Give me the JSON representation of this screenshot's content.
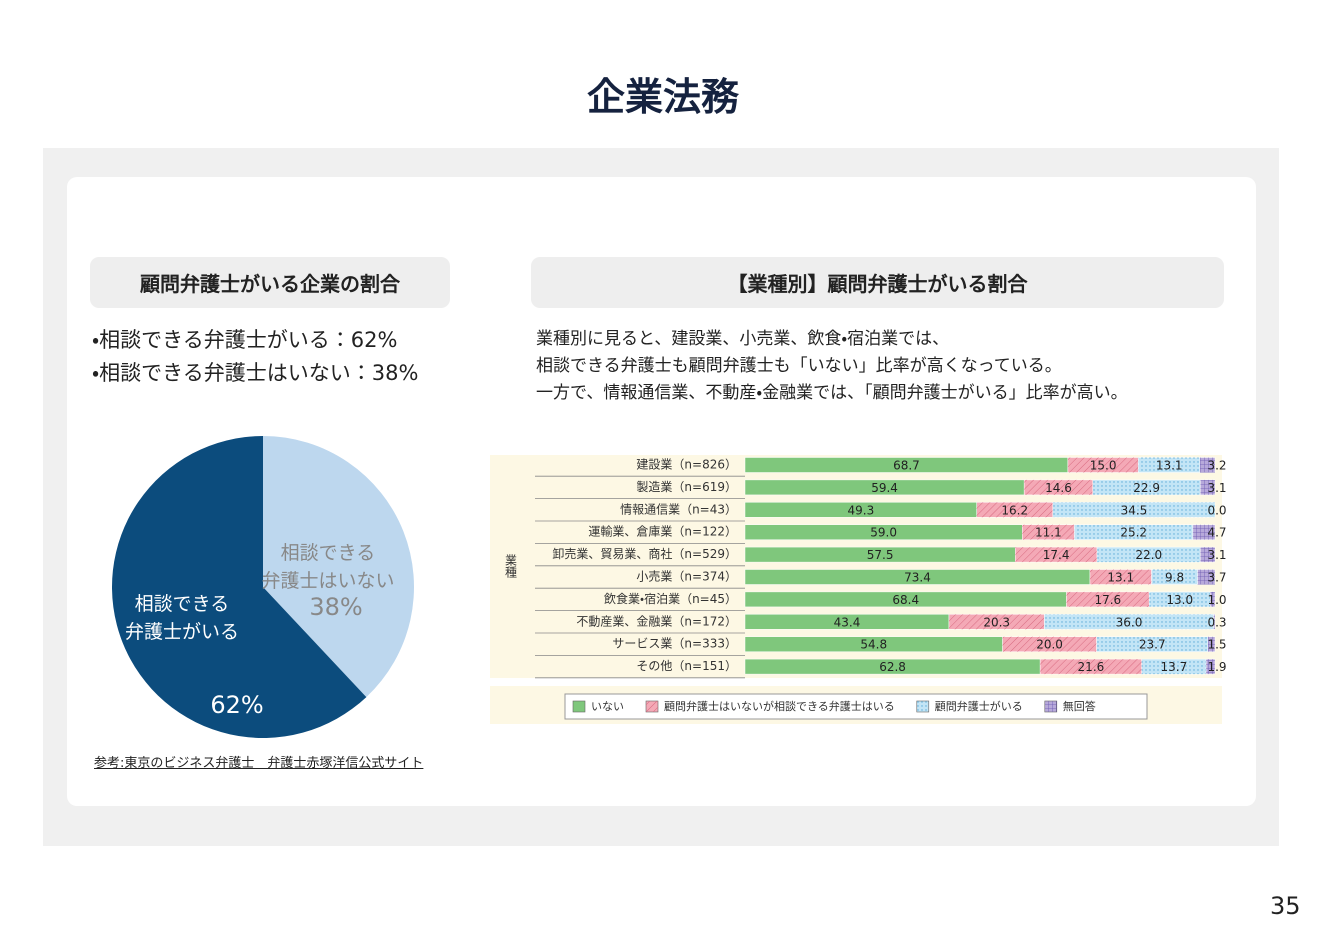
{
  "page": {
    "title": "企業法務",
    "page_number": "35"
  },
  "left": {
    "heading": "顧問弁護士がいる企業の割合",
    "bullets": [
      "・相談できる弁護士がいる：62%",
      "・相談できる弁護士はいない：38%"
    ],
    "source": "参考:東京のビジネス弁護士　弁護士赤塚洋信公式サイト"
  },
  "right": {
    "heading": "【業種別】顧問弁護士がいる割合",
    "description": [
      "業種別に見ると、建設業、小売業、飲食・宿泊業では、",
      "相談できる弁護士も顧問弁護士も「いない」比率が高くなっている。",
      "一方で、情報通信業、不動産・金融業では、「顧問弁護士がいる」比率が高い。"
    ]
  },
  "chart_data": [
    {
      "type": "pie",
      "categories": [
        "相談できる\n弁護士がいる",
        "相談できる\n弁護士はいない"
      ],
      "values": [
        62,
        38
      ],
      "value_labels": [
        "62%",
        "38%"
      ],
      "colors": [
        "#0c4c7d",
        "#bdd7ee"
      ],
      "label_colors": [
        "#ffffff",
        "#888888"
      ]
    },
    {
      "type": "stacked-bar-horizontal",
      "y_label": "業種",
      "categories": [
        "建設業（n=826）",
        "製造業（n=619）",
        "情報通信業（n=43）",
        "運輸業、倉庫業（n=122）",
        "卸売業、貿易業、商社（n=529）",
        "小売業（n=374）",
        "飲食業・宿泊業（n=45）",
        "不動産業、金融業（n=172）",
        "サービス業（n=333）",
        "その他（n=151）"
      ],
      "xlim": [
        0,
        100
      ],
      "series": [
        {
          "name": "いない",
          "color": "#7fc77c",
          "values": [
            68.7,
            59.4,
            49.3,
            59.0,
            57.5,
            73.4,
            68.4,
            43.4,
            54.8,
            62.8
          ],
          "value_labels": [
            "68.7",
            "59.4",
            "49.3",
            "59.0",
            "57.5",
            "73.4",
            "68.4",
            "43.4",
            "54.8",
            "62.8"
          ]
        },
        {
          "name": "顧問弁護士はいないが相談できる弁護士はいる",
          "color": "#f4a9b6",
          "values": [
            15.0,
            14.6,
            16.2,
            11.1,
            17.4,
            13.1,
            17.6,
            20.3,
            20.0,
            21.6
          ],
          "value_labels": [
            "15.0",
            "14.6",
            "16.2",
            "11.1",
            "17.4",
            "13.1",
            "17.6",
            "20.3",
            "20.0",
            "21.6"
          ]
        },
        {
          "name": "顧問弁護士がいる",
          "color": "#c3e5f6",
          "values": [
            13.1,
            22.9,
            34.5,
            25.2,
            22.0,
            9.8,
            13.0,
            36.0,
            23.7,
            13.7
          ],
          "value_labels": [
            "13.1",
            "22.9",
            "34.5",
            "25.2",
            "22.0",
            "9.8",
            "13.0",
            "36.0",
            "23.7",
            "13.7"
          ]
        },
        {
          "name": "無回答",
          "color": "#b7a9da",
          "values": [
            3.2,
            3.1,
            0.0,
            4.7,
            3.1,
            3.7,
            1.0,
            0.3,
            1.5,
            1.9
          ],
          "value_labels": [
            "3.2",
            "3.1",
            "0.0",
            "4.7",
            "3.1",
            "3.7",
            "1.0",
            "0.3",
            "1.5",
            "1.9"
          ]
        }
      ]
    }
  ]
}
